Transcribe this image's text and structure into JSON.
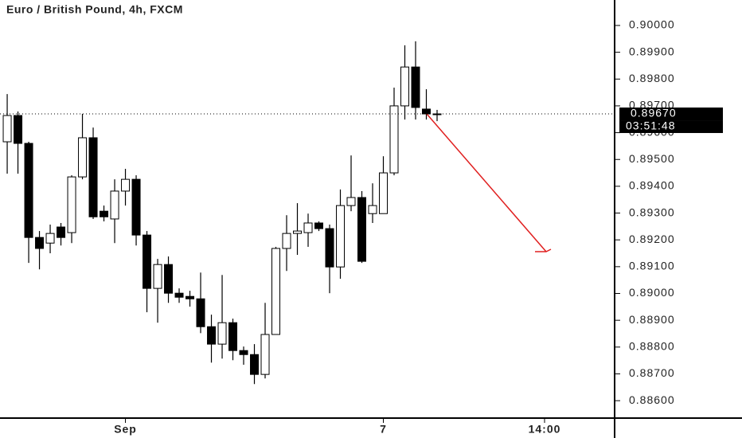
{
  "chart_data": {
    "type": "candlestick",
    "title": "Euro / British Pound, 4h, FXCM",
    "open": [
      0.89566,
      0.89664,
      0.8956,
      0.89209,
      0.89188,
      0.89248,
      0.89227,
      0.89435,
      0.89581,
      0.89307,
      0.89278,
      0.89382,
      0.89426,
      0.89218,
      0.89019,
      0.89108,
      0.89001,
      0.88989,
      0.8898,
      0.88876,
      0.88811,
      0.88891,
      0.88787,
      0.88772,
      0.88698,
      0.88847,
      0.89168,
      0.89224,
      0.89227,
      0.89263,
      0.89242,
      0.89099,
      0.89328,
      0.89358,
      0.89298,
      0.89298,
      0.8945,
      0.897,
      0.89845,
      0.89688,
      0.8967
    ],
    "high": [
      0.89744,
      0.89679,
      0.89566,
      0.89233,
      0.89257,
      0.89263,
      0.89441,
      0.8967,
      0.89619,
      0.89328,
      0.89426,
      0.89465,
      0.89441,
      0.89233,
      0.89129,
      0.89138,
      0.89019,
      0.8901,
      0.89078,
      0.88921,
      0.89069,
      0.88906,
      0.88802,
      0.88811,
      0.88965,
      0.89174,
      0.89292,
      0.89337,
      0.89298,
      0.89269,
      0.89257,
      0.89388,
      0.89515,
      0.89382,
      0.89411,
      0.89512,
      0.89768,
      0.89926,
      0.89941,
      0.89762,
      0.89685
    ],
    "low": [
      0.89447,
      0.89447,
      0.89114,
      0.8909,
      0.8915,
      0.89179,
      0.89188,
      0.89426,
      0.89278,
      0.89269,
      0.89188,
      0.89328,
      0.89179,
      0.8893,
      0.88891,
      0.88965,
      0.88965,
      0.88951,
      0.88852,
      0.88742,
      0.88757,
      0.88751,
      0.88734,
      0.88662,
      0.88683,
      0.88847,
      0.89084,
      0.89144,
      0.89174,
      0.89233,
      0.89001,
      0.89055,
      0.89307,
      0.89114,
      0.89263,
      0.89298,
      0.89441,
      0.89649,
      0.89649,
      0.89649,
      0.89643
    ],
    "close": [
      0.89664,
      0.8956,
      0.89209,
      0.89168,
      0.89224,
      0.89209,
      0.89435,
      0.89581,
      0.89286,
      0.89286,
      0.89382,
      0.89426,
      0.89218,
      0.89019,
      0.89108,
      0.89001,
      0.88986,
      0.8898,
      0.88876,
      0.88811,
      0.88891,
      0.88787,
      0.88772,
      0.88698,
      0.88847,
      0.89168,
      0.89224,
      0.89233,
      0.89263,
      0.89242,
      0.89099,
      0.89328,
      0.89358,
      0.8912,
      0.89328,
      0.8945,
      0.897,
      0.89845,
      0.89694,
      0.8967,
      0.8967
    ],
    "colors": {
      "up": "#ffffff",
      "down": "#000000"
    },
    "xlim": [
      -0.67,
      56.52
    ],
    "xticks": [
      {
        "value": 11,
        "label": "Sep"
      },
      {
        "value": 35,
        "label": "7"
      },
      {
        "value": 50,
        "label": "14:00"
      }
    ],
    "ylim": [
      0.88535,
      0.90095
    ],
    "yticks": [
      {
        "value": 0.886,
        "label": "0.88600"
      },
      {
        "value": 0.887,
        "label": "0.88700"
      },
      {
        "value": 0.888,
        "label": "0.88800"
      },
      {
        "value": 0.889,
        "label": "0.88900"
      },
      {
        "value": 0.89,
        "label": "0.89000"
      },
      {
        "value": 0.891,
        "label": "0.89100"
      },
      {
        "value": 0.892,
        "label": "0.89200"
      },
      {
        "value": 0.893,
        "label": "0.89300"
      },
      {
        "value": 0.894,
        "label": "0.89400"
      },
      {
        "value": 0.895,
        "label": "0.89500"
      },
      {
        "value": 0.896,
        "label": "0.89600"
      },
      {
        "value": 0.897,
        "label": "0.89700"
      },
      {
        "value": 0.898,
        "label": "0.89800"
      },
      {
        "value": 0.899,
        "label": "0.89900"
      },
      {
        "value": 0.9,
        "label": "0.90000"
      }
    ],
    "last_price": {
      "value": 0.8967,
      "label": "0.89670"
    },
    "countdown": "03:51:48"
  }
}
